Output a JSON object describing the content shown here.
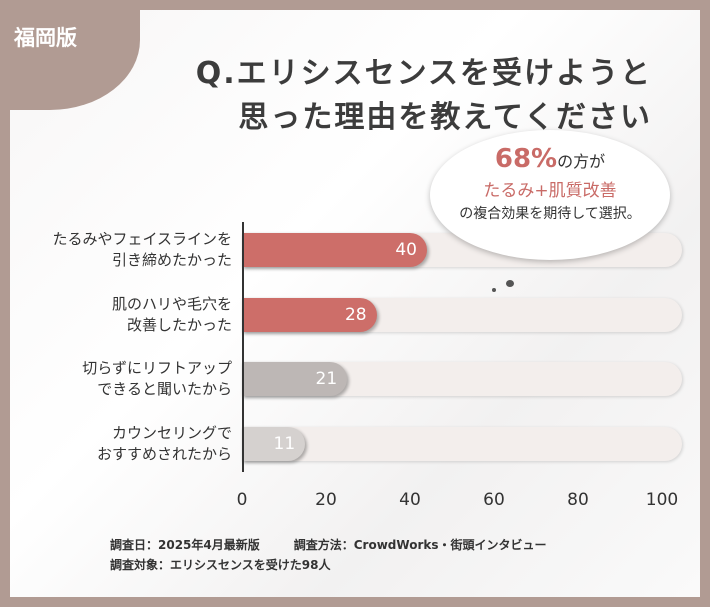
{
  "badge": "福岡版",
  "title": [
    "Q.エリシスセンスを受けようと",
    "思った理由を教えてください"
  ],
  "callout": {
    "percent": "68%",
    "line1_rest": "の方が",
    "line2": "たるみ+肌質改善",
    "line3": "の複合効果を期待して選択。"
  },
  "chart_data": {
    "type": "bar",
    "orientation": "horizontal",
    "categories": [
      [
        "たるみやフェイスラインを",
        "引き締めたかった"
      ],
      [
        "肌のハリや毛穴を",
        "改善したかった"
      ],
      [
        "切らずにリフトアップ",
        "できると聞いたから"
      ],
      [
        "カウンセリングで",
        "おすすめされたから"
      ]
    ],
    "values": [
      40,
      28,
      21,
      11
    ],
    "value_labels": [
      "40",
      "28",
      "21",
      "11"
    ],
    "xlim": [
      0,
      100
    ],
    "xticks": [
      "0",
      "20",
      "40",
      "60",
      "80",
      "100"
    ],
    "colors": [
      "#cd6e69",
      "#cd6e69",
      "#bdb7b5",
      "#d5d1cf"
    ],
    "track_color": "#f3eeec"
  },
  "footer": {
    "date": "調査日：2025年4月最新版",
    "method": "調査方法：CrowdWorks・街頭インタビュー",
    "target": "調査対象：エリシスセンスを受けた98人"
  }
}
